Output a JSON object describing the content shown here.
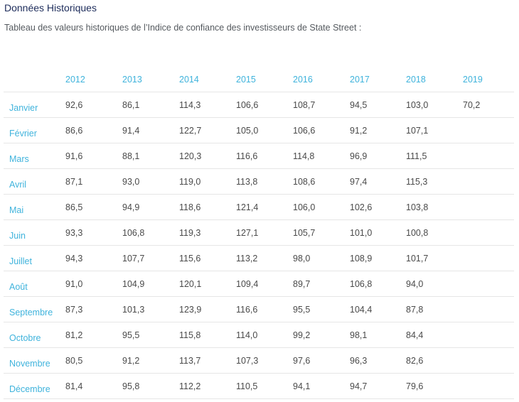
{
  "title": "Données Historiques",
  "subtitle": "Tableau des valeurs historiques de l’Indice de confiance des investisseurs de State Street :",
  "table": {
    "years": [
      "2012",
      "2013",
      "2014",
      "2015",
      "2016",
      "2017",
      "2018",
      "2019"
    ],
    "rows": [
      {
        "month": "Janvier",
        "values": [
          "92,6",
          "86,1",
          "114,3",
          "106,6",
          "108,7",
          "94,5",
          "103,0",
          "70,2"
        ]
      },
      {
        "month": "Février",
        "values": [
          "86,6",
          "91,4",
          "122,7",
          "105,0",
          "106,6",
          "91,2",
          "107,1",
          ""
        ]
      },
      {
        "month": "Mars",
        "values": [
          "91,6",
          "88,1",
          "120,3",
          "116,6",
          "114,8",
          "96,9",
          "111,5",
          ""
        ]
      },
      {
        "month": "Avril",
        "values": [
          "87,1",
          "93,0",
          "119,0",
          "113,8",
          "108,6",
          "97,4",
          "115,3",
          ""
        ]
      },
      {
        "month": "Mai",
        "values": [
          "86,5",
          "94,9",
          "118,6",
          "121,4",
          "106,0",
          "102,6",
          "103,8",
          ""
        ]
      },
      {
        "month": "Juin",
        "values": [
          "93,3",
          "106,8",
          "119,3",
          "127,1",
          "105,7",
          "101,0",
          "100,8",
          ""
        ]
      },
      {
        "month": "Juillet",
        "values": [
          "94,3",
          "107,7",
          "115,6",
          "113,2",
          "98,0",
          "108,9",
          "101,7",
          ""
        ]
      },
      {
        "month": "Août",
        "values": [
          "91,0",
          "104,9",
          "120,1",
          "109,4",
          "89,7",
          "106,8",
          "94,0",
          ""
        ]
      },
      {
        "month": "Septembre",
        "values": [
          "87,3",
          "101,3",
          "123,9",
          "116,6",
          "95,5",
          "104,4",
          "87,8",
          ""
        ]
      },
      {
        "month": "Octobre",
        "values": [
          "81,2",
          "95,5",
          "115,8",
          "114,0",
          "99,2",
          "98,1",
          "84,4",
          ""
        ]
      },
      {
        "month": "Novembre",
        "values": [
          "80,5",
          "91,2",
          "113,7",
          "107,3",
          "97,6",
          "96,3",
          "82,6",
          ""
        ]
      },
      {
        "month": "Décembre",
        "values": [
          "81,4",
          "95,8",
          "112,2",
          "110,5",
          "94,1",
          "94,7",
          "79,6",
          ""
        ]
      }
    ]
  },
  "colors": {
    "title": "#1c2b5a",
    "accent": "#3fb3dc",
    "text": "#4a4a4a",
    "rule": "#e6e6e6"
  }
}
